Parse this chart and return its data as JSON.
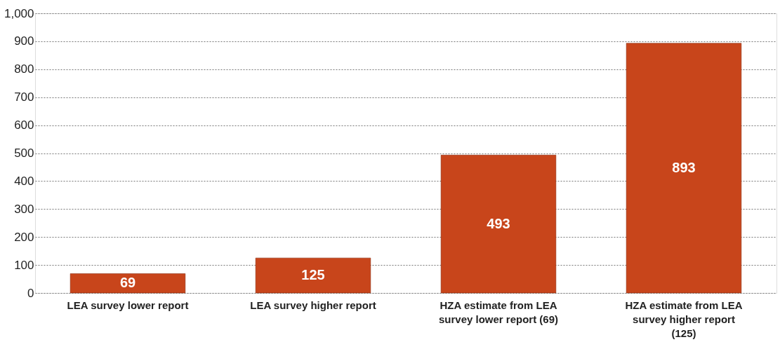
{
  "chart_data": {
    "type": "bar",
    "categories": [
      "LEA survey lower report",
      "LEA survey higher report",
      "HZA estimate from LEA survey lower report (69)",
      "HZA estimate from LEA survey higher report (125)"
    ],
    "values": [
      69,
      125,
      493,
      893
    ],
    "color": "#c8451b",
    "ylim": [
      0,
      1000
    ],
    "yticks": [
      0,
      100,
      200,
      300,
      400,
      500,
      600,
      700,
      800,
      900,
      {
        "value": 1000,
        "label": "1,000"
      }
    ],
    "grid": "y",
    "data_labels": true
  }
}
